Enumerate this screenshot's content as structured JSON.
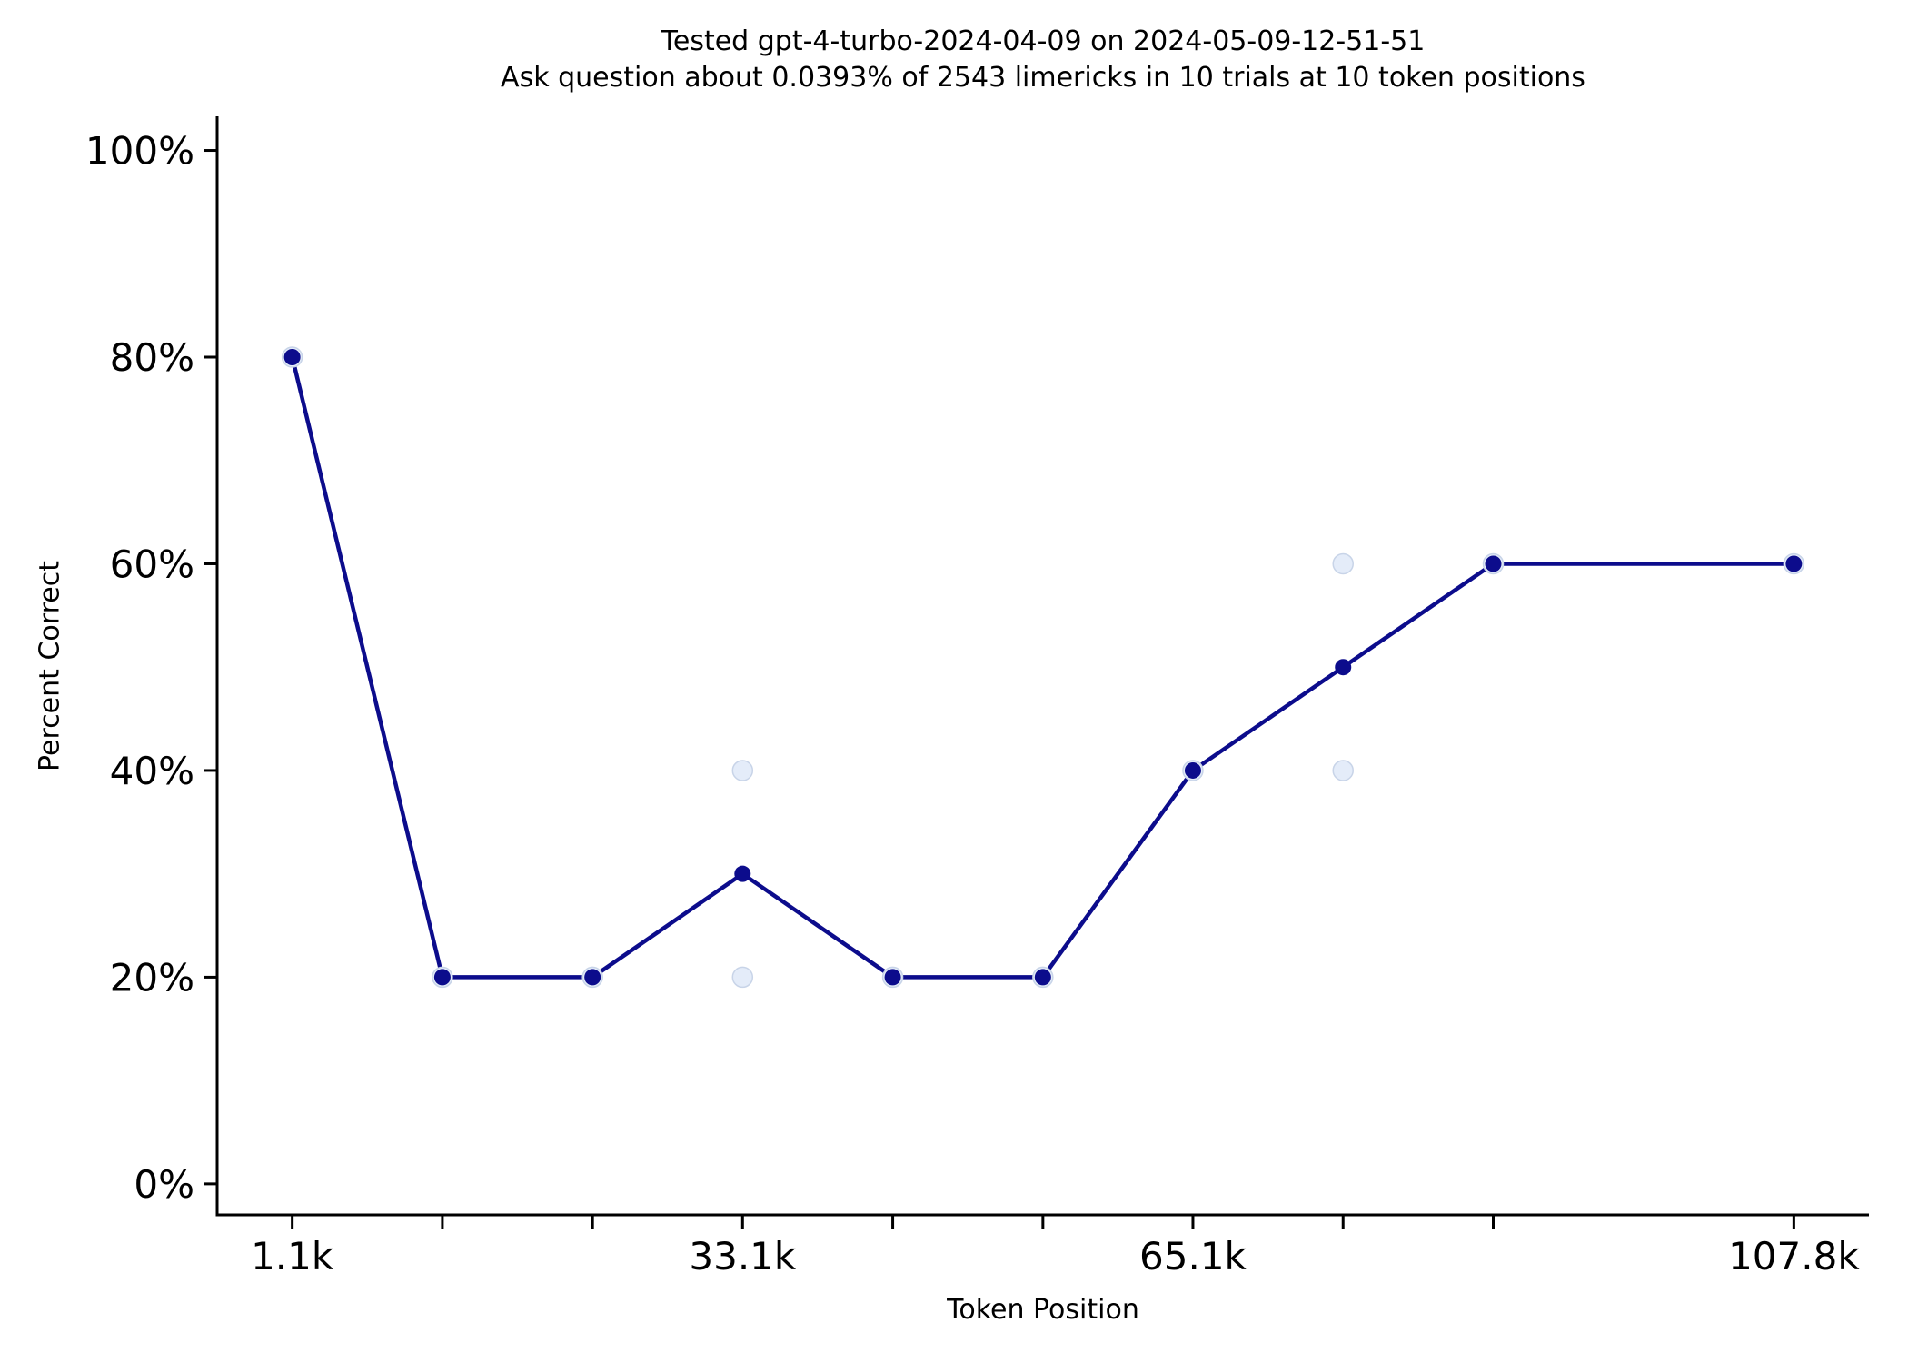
{
  "chart_data": {
    "type": "line",
    "title": "Tested gpt-4-turbo-2024-04-09 on 2024-05-09-12-51-51",
    "subtitle": "Ask question about 0.0393% of 2543 limericks in 10 trials at 10 token positions",
    "xlabel": "Token Position",
    "ylabel": "Percent Correct",
    "x": [
      1100,
      11770,
      22440,
      33100,
      43770,
      54440,
      65100,
      75770,
      86440,
      107800
    ],
    "x_tick_labels": [
      "1.1k",
      "",
      "",
      "33.1k",
      "",
      "",
      "65.1k",
      "",
      "",
      "107.8k"
    ],
    "x_tick_labels_shown": [
      "1.1k",
      "33.1k",
      "65.1k",
      "107.8k"
    ],
    "series": [
      {
        "name": "mean-percent-correct",
        "values": [
          80,
          20,
          20,
          30,
          20,
          20,
          40,
          50,
          60,
          60
        ]
      }
    ],
    "trial_scatter": {
      "name": "per-trial-results-faded",
      "values": [
        [
          80
        ],
        [
          20
        ],
        [
          20
        ],
        [
          40,
          20
        ],
        [
          20
        ],
        [
          20
        ],
        [
          40
        ],
        [
          60,
          40
        ],
        [
          60
        ],
        [
          60
        ]
      ]
    },
    "y_ticks": [
      0,
      20,
      40,
      60,
      80,
      100
    ],
    "y_tick_labels": [
      "0%",
      "20%",
      "40%",
      "60%",
      "80%",
      "100%"
    ],
    "xlim": [
      -4235,
      113135
    ],
    "ylim": [
      -3,
      103.3
    ],
    "grid": false,
    "legend": "none",
    "colors": {
      "line": "#0c0c8c",
      "mean_dot": "#0c0c8c",
      "trial_dot_fill": "#e4ecf9",
      "trial_dot_stroke": "#c8d4e8",
      "axis": "#000000",
      "background": "#ffffff"
    }
  }
}
